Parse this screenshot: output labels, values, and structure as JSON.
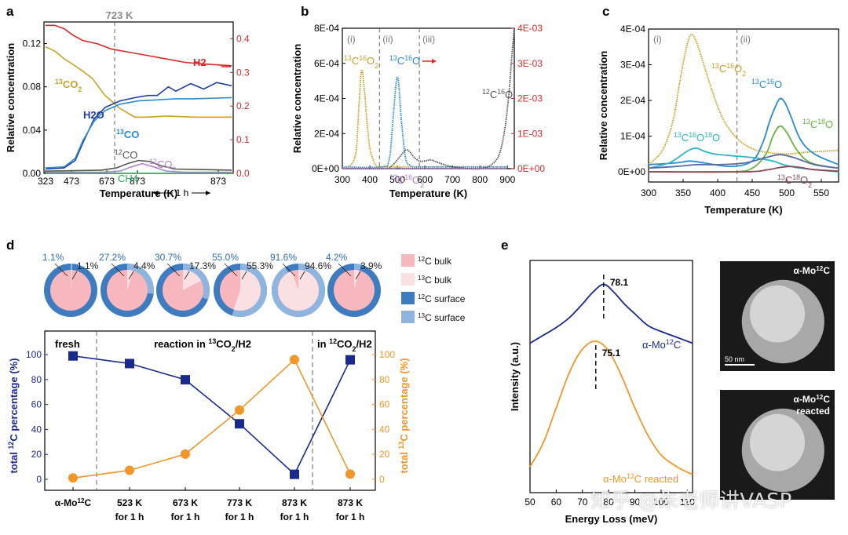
{
  "panel_letters": {
    "a": "a",
    "b": "b",
    "c": "c",
    "d": "d",
    "e": "e"
  },
  "colors": {
    "h2": "#d62b2b",
    "co2_13": "#c9a227",
    "h2o": "#1f3fa0",
    "co_13": "#2a8bd0",
    "co_12": "#555555",
    "co2_12": "#b77fd0",
    "ch4": "#2aa65a",
    "navy": "#1a2a8c",
    "orange": "#f0962a",
    "gray": "#4d4d4d",
    "cyan": "#28b8c8",
    "green": "#6ab23e",
    "maroon": "#8a4a55",
    "pie_bulk12": "#f6b8be",
    "pie_bulk13": "#fbe0e3",
    "pie_surf12": "#3e7bbf",
    "pie_surf13": "#8fb5de"
  },
  "chart_data": [
    {
      "panel": "a",
      "type": "line",
      "xlabel": "Temperature (K)",
      "ylabel": "Relative concentration",
      "x_ticks": [
        "323",
        "473",
        "673",
        "873",
        "873"
      ],
      "y_left_ticks": [
        "0.00",
        "0.04",
        "0.08",
        "0.12"
      ],
      "y_right_ticks": [
        "0.0",
        "0.1",
        "0.2",
        "0.3",
        "0.4"
      ],
      "ylim_left": [
        0,
        0.14
      ],
      "ylim_right": [
        0,
        0.45
      ],
      "annotation_vline": "723 K",
      "hold_annotation": "1 h",
      "series": [
        {
          "name": "H2",
          "axis": "right",
          "x": [
            0,
            5,
            10,
            15,
            20,
            28,
            35,
            45,
            55,
            65,
            75,
            85,
            100
          ],
          "y": [
            0.44,
            0.44,
            0.43,
            0.41,
            0.395,
            0.385,
            0.37,
            0.36,
            0.35,
            0.34,
            0.33,
            0.325,
            0.32
          ]
        },
        {
          "name": "13CO2",
          "axis": "left",
          "x": [
            0,
            5,
            10,
            18,
            25,
            32,
            40,
            48,
            55,
            65,
            80,
            100
          ],
          "y": [
            0.117,
            0.113,
            0.106,
            0.097,
            0.088,
            0.072,
            0.06,
            0.052,
            0.052,
            0.053,
            0.052,
            0.052
          ]
        },
        {
          "name": "H2O",
          "axis": "left",
          "x": [
            0,
            10,
            16,
            20,
            26,
            32,
            40,
            48,
            55,
            60,
            66,
            70,
            78,
            85,
            92,
            100
          ],
          "y": [
            0.004,
            0.005,
            0.012,
            0.028,
            0.05,
            0.061,
            0.067,
            0.07,
            0.072,
            0.072,
            0.08,
            0.076,
            0.083,
            0.078,
            0.084,
            0.081
          ]
        },
        {
          "name": "13CO",
          "axis": "left",
          "x": [
            0,
            10,
            16,
            20,
            26,
            32,
            40,
            50,
            60,
            70,
            80,
            100
          ],
          "y": [
            0.005,
            0.006,
            0.014,
            0.03,
            0.048,
            0.058,
            0.064,
            0.067,
            0.068,
            0.069,
            0.069,
            0.07
          ]
        },
        {
          "name": "12CO",
          "axis": "left",
          "x": [
            0,
            30,
            38,
            44,
            50,
            56,
            62,
            70,
            100
          ],
          "y": [
            0.002,
            0.003,
            0.005,
            0.009,
            0.012,
            0.011,
            0.007,
            0.004,
            0.003
          ]
        },
        {
          "name": "12CO2",
          "axis": "left",
          "x": [
            0,
            30,
            40,
            46,
            52,
            58,
            65,
            75,
            100
          ],
          "y": [
            0.001,
            0.001,
            0.002,
            0.006,
            0.009,
            0.006,
            0.002,
            0.001,
            0.001
          ]
        },
        {
          "name": "CH4",
          "axis": "left",
          "x": [
            0,
            100
          ],
          "y": [
            0.0,
            0.0
          ]
        }
      ]
    },
    {
      "panel": "b",
      "type": "line",
      "xlabel": "Temperature (K)",
      "ylabel": "Relative concentration",
      "xlim": [
        300,
        925
      ],
      "x_ticks": [
        "300",
        "400",
        "500",
        "600",
        "700",
        "800",
        "900"
      ],
      "y_left_ticks": [
        "0E+00",
        "2E-04",
        "4E-04",
        "6E-04",
        "8E-04"
      ],
      "y_right_ticks": [
        "0E+00",
        "1E-03",
        "2E-03",
        "3E-03",
        "4E-03"
      ],
      "ylim_left": [
        0,
        0.0008
      ],
      "ylim_right": [
        0,
        0.004
      ],
      "regions": [
        "(i)",
        "(ii)",
        "(iii)"
      ],
      "region_bounds": [
        435,
        580
      ],
      "series": [
        {
          "name": "13C16O2",
          "axis": "left",
          "x": [
            300,
            330,
            350,
            360,
            370,
            380,
            390,
            400,
            415,
            430,
            460,
            500,
            600,
            900
          ],
          "y": [
            1e-05,
            2e-05,
            0.0001,
            0.00035,
            0.00056,
            0.00045,
            0.00026,
            0.00012,
            4e-05,
            1e-05,
            1e-05,
            1e-05,
            1e-05,
            1e-05
          ]
        },
        {
          "name": "13C16O",
          "axis": "left",
          "x": [
            300,
            440,
            470,
            485,
            495,
            500,
            505,
            515,
            530,
            545,
            560,
            600,
            900
          ],
          "y": [
            1e-05,
            1e-05,
            5e-05,
            0.0003,
            0.00048,
            0.00052,
            0.00048,
            0.00027,
            6e-05,
            2e-05,
            1e-05,
            1e-05,
            1e-05
          ]
        },
        {
          "name": "12C16O",
          "axis": "right",
          "x": [
            300,
            450,
            480,
            510,
            530,
            545,
            560,
            580,
            600,
            620,
            640,
            680,
            720,
            760,
            800,
            840,
            870,
            890,
            905,
            915,
            925
          ],
          "y": [
            0.0,
            0.0,
            8e-05,
            0.00035,
            0.00053,
            0.00048,
            0.00033,
            0.00022,
            0.00022,
            0.00025,
            0.0002,
            9e-05,
            3e-05,
            0.0,
            0.0,
            0.0001,
            0.0004,
            0.0011,
            0.0021,
            0.0031,
            0.004
          ]
        },
        {
          "name": "12C16O2",
          "axis": "left",
          "x": [
            300,
            470,
            500,
            530,
            600,
            900
          ],
          "y": [
            0.0,
            0.0,
            5e-06,
            0.0,
            0.0,
            0.0
          ]
        }
      ]
    },
    {
      "panel": "c",
      "type": "line",
      "xlabel": "Temperature (K)",
      "ylabel": "Relative concentration",
      "xlim": [
        300,
        575
      ],
      "x_ticks": [
        "300",
        "350",
        "400",
        "450",
        "500",
        "550"
      ],
      "y_ticks": [
        "0E+00",
        "1E-04",
        "2E-04",
        "3E-04",
        "4E-04"
      ],
      "ylim": [
        0,
        0.0004
      ],
      "regions": [
        "(i)",
        "(ii)"
      ],
      "region_bounds": [
        428
      ],
      "series": [
        {
          "name": "13C16O2",
          "x": [
            300,
            320,
            335,
            345,
            355,
            362,
            370,
            380,
            395,
            410,
            430,
            450,
            470,
            500,
            530,
            575
          ],
          "y": [
            2e-05,
            6e-05,
            0.00014,
            0.00025,
            0.00035,
            0.000385,
            0.00036,
            0.0003,
            0.00021,
            0.00014,
            9e-05,
            6.5e-05,
            5.5e-05,
            5e-05,
            5.5e-05,
            6e-05
          ]
        },
        {
          "name": "13C16O",
          "x": [
            300,
            340,
            360,
            380,
            420,
            450,
            465,
            475,
            483,
            490,
            497,
            505,
            520,
            540,
            575
          ],
          "y": [
            2e-05,
            2.5e-05,
            3e-05,
            2.5e-05,
            1.5e-05,
            3e-05,
            8e-05,
            0.00014,
            0.00018,
            0.000205,
            0.000195,
            0.00016,
            9e-05,
            5e-05,
            2e-05
          ]
        },
        {
          "name": "13C18O",
          "x": [
            300,
            420,
            450,
            470,
            480,
            490,
            500,
            515,
            535,
            575
          ],
          "y": [
            0.0,
            0.0,
            1e-05,
            5e-05,
            0.0001,
            0.000128,
            0.00011,
            6e-05,
            2.5e-05,
            1e-05
          ]
        },
        {
          "name": "13C16O18O",
          "x": [
            300,
            330,
            350,
            360,
            370,
            380,
            395,
            420,
            450,
            480,
            495,
            520,
            575
          ],
          "y": [
            1e-05,
            2.5e-05,
            5e-05,
            6.2e-05,
            6.6e-05,
            5.8e-05,
            5e-05,
            4.5e-05,
            4e-05,
            3e-05,
            2e-05,
            1e-05,
            0.0
          ]
        },
        {
          "name": "12C16O",
          "x": [
            300,
            340,
            370,
            400,
            440,
            470,
            490,
            510,
            540,
            575
          ],
          "y": [
            1e-05,
            1.5e-05,
            2e-05,
            2e-05,
            2.5e-05,
            4e-05,
            4.8e-05,
            4e-05,
            2e-05,
            1e-05
          ]
        },
        {
          "name": "13C18O2",
          "x": [
            300,
            440,
            470,
            490,
            505,
            520,
            540,
            575
          ],
          "y": [
            0.0,
            0.0,
            5e-06,
            1.2e-05,
            1.5e-05,
            1.2e-05,
            6e-06,
            2e-06
          ]
        }
      ]
    },
    {
      "panel": "d",
      "type": "line",
      "categories": [
        "α-Mo12C",
        "523 K\nfor 1 h",
        "673 K\nfor 1 h",
        "773 K\nfor 1 h",
        "873 K\nfor 1 h",
        "873 K\nfor 1 h"
      ],
      "ylabel_left": "total 12C percentage (%)",
      "ylabel_right": "total 13C percentage (%)",
      "y_ticks": [
        "0",
        "20",
        "40",
        "60",
        "80",
        "100"
      ],
      "ylim": [
        0,
        105
      ],
      "phase_labels": [
        "fresh",
        "reaction in 13CO2/H2",
        "in 12CO2/H2"
      ],
      "series": [
        {
          "name": "total 12C",
          "values": [
            98.9,
            92.8,
            79.8,
            44.5,
            4.0,
            95.8
          ]
        },
        {
          "name": "total 13C",
          "values": [
            1.1,
            7.2,
            20.2,
            55.5,
            96.0,
            4.2
          ]
        }
      ],
      "pies": [
        {
          "surface_13c": "1.1%",
          "bulk_13c": "1.1%",
          "bulk_13c_frac": 0.011
        },
        {
          "surface_13c": "27.2%",
          "bulk_13c": "4.4%",
          "bulk_13c_frac": 0.044
        },
        {
          "surface_13c": "30.7%",
          "bulk_13c": "17.3%",
          "bulk_13c_frac": 0.173
        },
        {
          "surface_13c": "55.0%",
          "bulk_13c": "55.3%",
          "bulk_13c_frac": 0.553
        },
        {
          "surface_13c": "91.6%",
          "bulk_13c": "94.6%",
          "bulk_13c_frac": 0.946
        },
        {
          "surface_13c": "4.2%",
          "bulk_13c": "3.9%",
          "bulk_13c_frac": 0.039
        }
      ],
      "legend": [
        "12C bulk",
        "13C bulk",
        "12C surface",
        "13C surface"
      ]
    },
    {
      "panel": "e",
      "type": "line",
      "xlabel": "Energy Loss (meV)",
      "ylabel": "Intensity (a.u.)",
      "xlim": [
        50,
        112
      ],
      "x_ticks": [
        "50",
        "60",
        "70",
        "80",
        "90",
        "100",
        "110"
      ],
      "peaks": [
        "78.1",
        "75.1"
      ],
      "series": [
        {
          "name": "α-Mo12C",
          "x": [
            50,
            55,
            60,
            65,
            70,
            74,
            78.1,
            82,
            86,
            90,
            95,
            100,
            106,
            112
          ],
          "y": [
            0.73,
            0.77,
            0.81,
            0.86,
            0.93,
            0.99,
            1.03,
            0.99,
            0.93,
            0.88,
            0.82,
            0.79,
            0.76,
            0.73
          ]
        },
        {
          "name": "α-Mo12C reacted",
          "x": [
            50,
            55,
            60,
            65,
            70,
            75.1,
            80,
            85,
            90,
            95,
            100,
            106,
            112
          ],
          "y": [
            0.1,
            0.22,
            0.4,
            0.58,
            0.7,
            0.74,
            0.69,
            0.56,
            0.4,
            0.26,
            0.16,
            0.1,
            0.06
          ]
        }
      ],
      "image_labels": [
        "α-Mo12C",
        "α-Mo12C\nreacted"
      ],
      "scale_bar": "50 nm"
    }
  ],
  "watermark": "知乎 @朱老师讲VASP"
}
